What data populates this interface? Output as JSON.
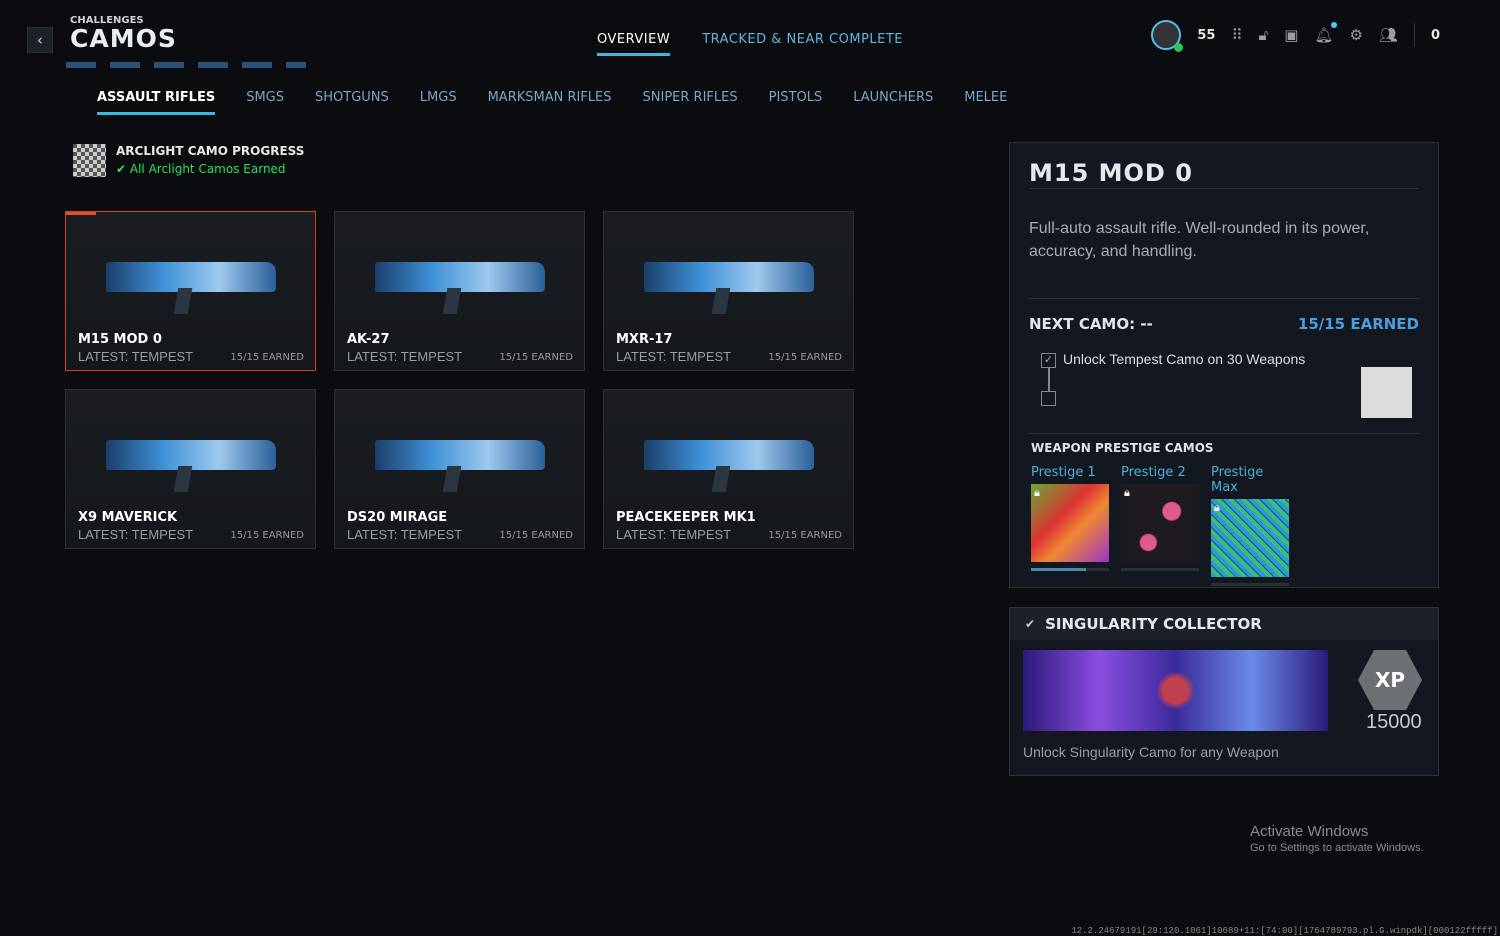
{
  "header": {
    "supertitle": "CHALLENGES",
    "title": "CAMOS",
    "level": "55",
    "currency": "0",
    "tabs": [
      {
        "label": "OVERVIEW",
        "active": true
      },
      {
        "label": "TRACKED & NEAR COMPLETE",
        "active": false
      }
    ],
    "accent": "#3fb6e0"
  },
  "categories": [
    {
      "label": "ASSAULT RIFLES",
      "active": true
    },
    {
      "label": "SMGS"
    },
    {
      "label": "SHOTGUNS"
    },
    {
      "label": "LMGS"
    },
    {
      "label": "MARKSMAN RIFLES"
    },
    {
      "label": "SNIPER RIFLES"
    },
    {
      "label": "PISTOLS"
    },
    {
      "label": "LAUNCHERS"
    },
    {
      "label": "MELEE"
    }
  ],
  "arclight": {
    "title": "ARCLIGHT CAMO PROGRESS",
    "status": "All Arclight Camos Earned"
  },
  "weapons": [
    {
      "name": "M15 MOD 0",
      "latest": "LATEST: TEMPEST",
      "earned": "15/15 EARNED",
      "selected": true
    },
    {
      "name": "AK-27",
      "latest": "LATEST: TEMPEST",
      "earned": "15/15 EARNED"
    },
    {
      "name": "MXR-17",
      "latest": "LATEST: TEMPEST",
      "earned": "15/15 EARNED"
    },
    {
      "name": "X9 MAVERICK",
      "latest": "LATEST: TEMPEST",
      "earned": "15/15 EARNED"
    },
    {
      "name": "DS20 MIRAGE",
      "latest": "LATEST: TEMPEST",
      "earned": "15/15 EARNED"
    },
    {
      "name": "PEACEKEEPER MK1",
      "latest": "LATEST: TEMPEST",
      "earned": "15/15 EARNED"
    }
  ],
  "detail": {
    "name": "M15 MOD 0",
    "description": "Full-auto assault rifle. Well-rounded in its power, accuracy, and handling.",
    "next_camo": "NEXT CAMO: --",
    "earned": "15/15 EARNED",
    "task": "Unlock Tempest Camo on 30 Weapons",
    "task_done": true,
    "prestige_title": "WEAPON PRESTIGE CAMOS",
    "prestige": [
      {
        "label": "Prestige 1",
        "progress": 0.7,
        "locked": true
      },
      {
        "label": "Prestige 2",
        "progress": 0,
        "locked": true
      },
      {
        "label": "Prestige Max",
        "progress": 0,
        "locked": true
      }
    ]
  },
  "singularity": {
    "title": "SINGULARITY COLLECTOR",
    "xp_badge": "XP",
    "xp": "15000",
    "description": "Unlock Singularity Camo for any Weapon"
  },
  "watermark": {
    "line1": "Activate Windows",
    "line2": "Go to Settings to activate Windows."
  },
  "version": "12.2.24679191[29:120.1061]10689+11:[74:00][1764789793.pl.G.winpdk][000122fffff]"
}
